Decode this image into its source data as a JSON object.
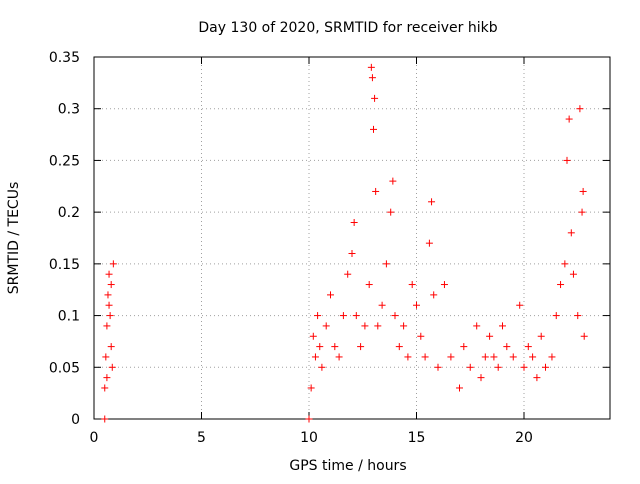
{
  "chart_data": {
    "type": "scatter",
    "title": "Day 130 of 2020, SRMTID for receiver hikb",
    "xlabel": "GPS time / hours",
    "ylabel": "SRMTID / TECUs",
    "xlim": [
      0,
      24
    ],
    "ylim": [
      0,
      0.35
    ],
    "grid": true,
    "marker": "+",
    "x_ticks": [
      0,
      5,
      10,
      15,
      20
    ],
    "x_tick_labels": [
      "0",
      "5",
      "10",
      "15",
      "20"
    ],
    "y_ticks": [
      0,
      0.05,
      0.1,
      0.15,
      0.2,
      0.25,
      0.3,
      0.35
    ],
    "y_tick_labels": [
      "0",
      "0.05",
      "0.1",
      "0.15",
      "0.2",
      "0.25",
      "0.3",
      "0.35"
    ],
    "colors": {
      "series": "#ff0000",
      "grid": "#a0a0a0",
      "axis": "#000000"
    },
    "series": [
      {
        "name": "SRMTID",
        "points": [
          [
            0.5,
            0.0
          ],
          [
            0.5,
            0.03
          ],
          [
            0.55,
            0.06
          ],
          [
            0.6,
            0.09
          ],
          [
            0.65,
            0.12
          ],
          [
            0.7,
            0.14
          ],
          [
            0.75,
            0.1
          ],
          [
            0.8,
            0.07
          ],
          [
            0.85,
            0.05
          ],
          [
            0.9,
            0.15
          ],
          [
            0.6,
            0.04
          ],
          [
            0.7,
            0.11
          ],
          [
            0.8,
            0.13
          ],
          [
            10.0,
            0.0
          ],
          [
            10.1,
            0.03
          ],
          [
            10.2,
            0.08
          ],
          [
            10.3,
            0.06
          ],
          [
            10.4,
            0.1
          ],
          [
            10.5,
            0.07
          ],
          [
            10.6,
            0.05
          ],
          [
            10.8,
            0.09
          ],
          [
            11.0,
            0.12
          ],
          [
            11.2,
            0.07
          ],
          [
            11.4,
            0.06
          ],
          [
            11.6,
            0.1
          ],
          [
            11.8,
            0.14
          ],
          [
            12.0,
            0.16
          ],
          [
            12.1,
            0.19
          ],
          [
            12.2,
            0.1
          ],
          [
            12.4,
            0.07
          ],
          [
            12.6,
            0.09
          ],
          [
            12.8,
            0.13
          ],
          [
            12.9,
            0.34
          ],
          [
            12.95,
            0.33
          ],
          [
            13.0,
            0.28
          ],
          [
            13.05,
            0.31
          ],
          [
            13.1,
            0.22
          ],
          [
            13.2,
            0.09
          ],
          [
            13.4,
            0.11
          ],
          [
            13.6,
            0.15
          ],
          [
            13.8,
            0.2
          ],
          [
            13.9,
            0.23
          ],
          [
            14.0,
            0.1
          ],
          [
            14.2,
            0.07
          ],
          [
            14.4,
            0.09
          ],
          [
            14.6,
            0.06
          ],
          [
            14.8,
            0.13
          ],
          [
            15.0,
            0.11
          ],
          [
            15.2,
            0.08
          ],
          [
            15.4,
            0.06
          ],
          [
            15.6,
            0.17
          ],
          [
            15.7,
            0.21
          ],
          [
            15.8,
            0.12
          ],
          [
            16.0,
            0.05
          ],
          [
            16.3,
            0.13
          ],
          [
            16.6,
            0.06
          ],
          [
            17.0,
            0.03
          ],
          [
            17.2,
            0.07
          ],
          [
            17.5,
            0.05
          ],
          [
            17.8,
            0.09
          ],
          [
            18.0,
            0.04
          ],
          [
            18.2,
            0.06
          ],
          [
            18.4,
            0.08
          ],
          [
            18.6,
            0.06
          ],
          [
            18.8,
            0.05
          ],
          [
            19.0,
            0.09
          ],
          [
            19.2,
            0.07
          ],
          [
            19.5,
            0.06
          ],
          [
            19.8,
            0.11
          ],
          [
            20.0,
            0.05
          ],
          [
            20.2,
            0.07
          ],
          [
            20.4,
            0.06
          ],
          [
            20.6,
            0.04
          ],
          [
            20.8,
            0.08
          ],
          [
            21.0,
            0.05
          ],
          [
            21.3,
            0.06
          ],
          [
            21.5,
            0.1
          ],
          [
            21.7,
            0.13
          ],
          [
            21.9,
            0.15
          ],
          [
            22.0,
            0.25
          ],
          [
            22.1,
            0.29
          ],
          [
            22.2,
            0.18
          ],
          [
            22.3,
            0.14
          ],
          [
            22.5,
            0.1
          ],
          [
            22.6,
            0.3
          ],
          [
            22.7,
            0.2
          ],
          [
            22.75,
            0.22
          ],
          [
            22.8,
            0.08
          ]
        ]
      }
    ]
  }
}
